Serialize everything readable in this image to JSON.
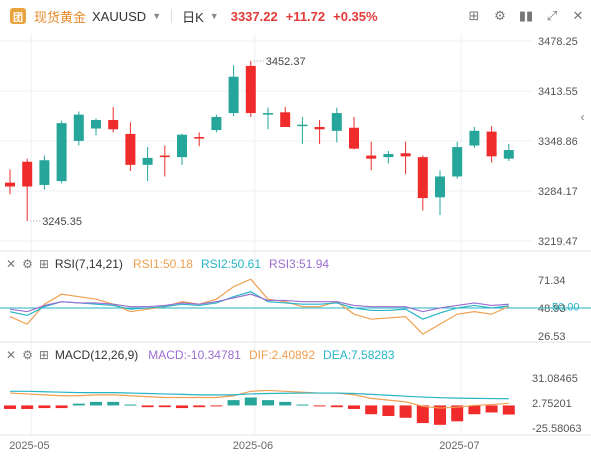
{
  "header": {
    "logo_text": "团",
    "symbol_name": "现货黄金",
    "symbol_code": "XAUUSD",
    "timeframe": "日K",
    "price": "3337.22",
    "change": "+11.72",
    "change_pct": "+0.35%",
    "tool_icons": [
      "indicator-icon",
      "settings-icon",
      "candle-type-icon",
      "expand-icon",
      "close-icon"
    ]
  },
  "colors": {
    "up": "#26a69a",
    "down": "#ef2b2b",
    "grid": "#eef0f3"
  },
  "chart_data": [
    {
      "type": "candlestick",
      "title": "",
      "x_ticks": [
        "2025-05",
        "2025-06",
        "2025-07"
      ],
      "y_ticks": [
        "3478.25",
        "3413.55",
        "3348.86",
        "3284.17",
        "3219.47"
      ],
      "ylim": [
        3219.47,
        3478.25
      ],
      "annotations": [
        {
          "label": "3452.37",
          "value": 3452.37,
          "candle": 14
        },
        {
          "label": "3245.35",
          "value": 3245.35,
          "candle": 1
        }
      ],
      "candles": [
        {
          "o": 3295,
          "h": 3312,
          "l": 3280,
          "c": 3290
        },
        {
          "o": 3322,
          "h": 3326,
          "l": 3245.35,
          "c": 3290
        },
        {
          "o": 3292,
          "h": 3330,
          "l": 3286,
          "c": 3324
        },
        {
          "o": 3297,
          "h": 3375,
          "l": 3294,
          "c": 3372
        },
        {
          "o": 3349,
          "h": 3387,
          "l": 3343,
          "c": 3383
        },
        {
          "o": 3365,
          "h": 3378,
          "l": 3356,
          "c": 3376
        },
        {
          "o": 3376,
          "h": 3393,
          "l": 3360,
          "c": 3364
        },
        {
          "o": 3358,
          "h": 3373,
          "l": 3310,
          "c": 3318
        },
        {
          "o": 3318,
          "h": 3341,
          "l": 3297,
          "c": 3327
        },
        {
          "o": 3330,
          "h": 3343,
          "l": 3303,
          "c": 3328
        },
        {
          "o": 3328,
          "h": 3358,
          "l": 3318,
          "c": 3357
        },
        {
          "o": 3354,
          "h": 3360,
          "l": 3342,
          "c": 3352
        },
        {
          "o": 3363,
          "h": 3383,
          "l": 3360,
          "c": 3380
        },
        {
          "o": 3385,
          "h": 3447,
          "l": 3381,
          "c": 3432
        },
        {
          "o": 3446,
          "h": 3452.37,
          "l": 3380,
          "c": 3385
        },
        {
          "o": 3383,
          "h": 3392,
          "l": 3364,
          "c": 3385
        },
        {
          "o": 3386,
          "h": 3393,
          "l": 3367,
          "c": 3367
        },
        {
          "o": 3369,
          "h": 3380,
          "l": 3345,
          "c": 3370
        },
        {
          "o": 3367,
          "h": 3376,
          "l": 3345,
          "c": 3364
        },
        {
          "o": 3362,
          "h": 3392,
          "l": 3347,
          "c": 3385
        },
        {
          "o": 3366,
          "h": 3380,
          "l": 3338,
          "c": 3339
        },
        {
          "o": 3330,
          "h": 3348,
          "l": 3311,
          "c": 3326
        },
        {
          "o": 3328,
          "h": 3336,
          "l": 3320,
          "c": 3332
        },
        {
          "o": 3333,
          "h": 3348,
          "l": 3306,
          "c": 3329
        },
        {
          "o": 3328,
          "h": 3330,
          "l": 3259,
          "c": 3275
        },
        {
          "o": 3276,
          "h": 3311,
          "l": 3253,
          "c": 3303
        },
        {
          "o": 3303,
          "h": 3348,
          "l": 3300,
          "c": 3341
        },
        {
          "o": 3343,
          "h": 3367,
          "l": 3340,
          "c": 3362
        },
        {
          "o": 3361,
          "h": 3368,
          "l": 3321,
          "c": 3329
        },
        {
          "o": 3326,
          "h": 3345,
          "l": 3323,
          "c": 3337.22
        }
      ]
    },
    {
      "type": "line",
      "title": "RSI(7,14,21)",
      "y_ticks": [
        "71.34",
        "50.00",
        "48.93",
        "26.53"
      ],
      "ylim": [
        26.53,
        71.34
      ],
      "series": [
        {
          "name": "RSI1:50.18",
          "color": "#f0a050",
          "values": [
            42,
            36,
            52,
            60,
            58,
            56,
            52,
            46,
            48,
            50,
            54,
            52,
            56,
            66,
            72,
            56,
            54,
            50,
            50,
            54,
            44,
            40,
            41,
            42,
            28,
            36,
            44,
            46,
            44,
            50.18
          ]
        },
        {
          "name": "RSI2:50.61",
          "color": "#26b5c6",
          "values": [
            46,
            43,
            50,
            54,
            53,
            52,
            51,
            48,
            49,
            50,
            52,
            51,
            53,
            58,
            62,
            54,
            53,
            52,
            52,
            53,
            49,
            47,
            47,
            48,
            40,
            45,
            49,
            51,
            49,
            50.61
          ]
        },
        {
          "name": "RSI3:51.94",
          "color": "#9b6ed1",
          "values": [
            48,
            46,
            51,
            54,
            53,
            53,
            52,
            50,
            50,
            51,
            53,
            52,
            54,
            57,
            60,
            55,
            55,
            54,
            54,
            54,
            51,
            50,
            50,
            50,
            46,
            49,
            51,
            53,
            51,
            51.94
          ]
        }
      ],
      "baseline": 48.93
    },
    {
      "type": "bar",
      "title": "MACD(12,26,9)",
      "y_ticks": [
        "31.08465",
        "2.75201",
        "-25.58063"
      ],
      "ylim": [
        -25.58063,
        31.08465
      ],
      "series": [
        {
          "name": "MACD:-10.34781",
          "color": "#ef2b2b",
          "values": [
            -4,
            -4,
            -3,
            -3,
            2,
            4,
            4,
            1,
            -2,
            -2,
            -3,
            -2,
            -1,
            6,
            9,
            6,
            4,
            1,
            -1,
            -2,
            -4,
            -10,
            -12,
            -14,
            -20,
            -22,
            -18,
            -10,
            -8,
            -10.35
          ]
        },
        {
          "name": "DIF:2.40892",
          "color": "#f0a050",
          "values": [
            14,
            13,
            12,
            11,
            11,
            12,
            12,
            11,
            10,
            9,
            9,
            9,
            9,
            11,
            16,
            17,
            16,
            15,
            14,
            14,
            12,
            8,
            6,
            4,
            -1,
            -3,
            -2,
            0,
            1,
            2.41
          ]
        },
        {
          "name": "DEA:7.58283",
          "color": "#26b5c6",
          "values": [
            16,
            16,
            15.5,
            15,
            14.5,
            14.5,
            14.5,
            14,
            13.5,
            13,
            12.5,
            12,
            12,
            12,
            13,
            13.5,
            13.8,
            14,
            14,
            14,
            13.5,
            12.5,
            11.5,
            10.5,
            9.5,
            8.8,
            8.3,
            8,
            7.8,
            7.58
          ]
        }
      ]
    }
  ]
}
